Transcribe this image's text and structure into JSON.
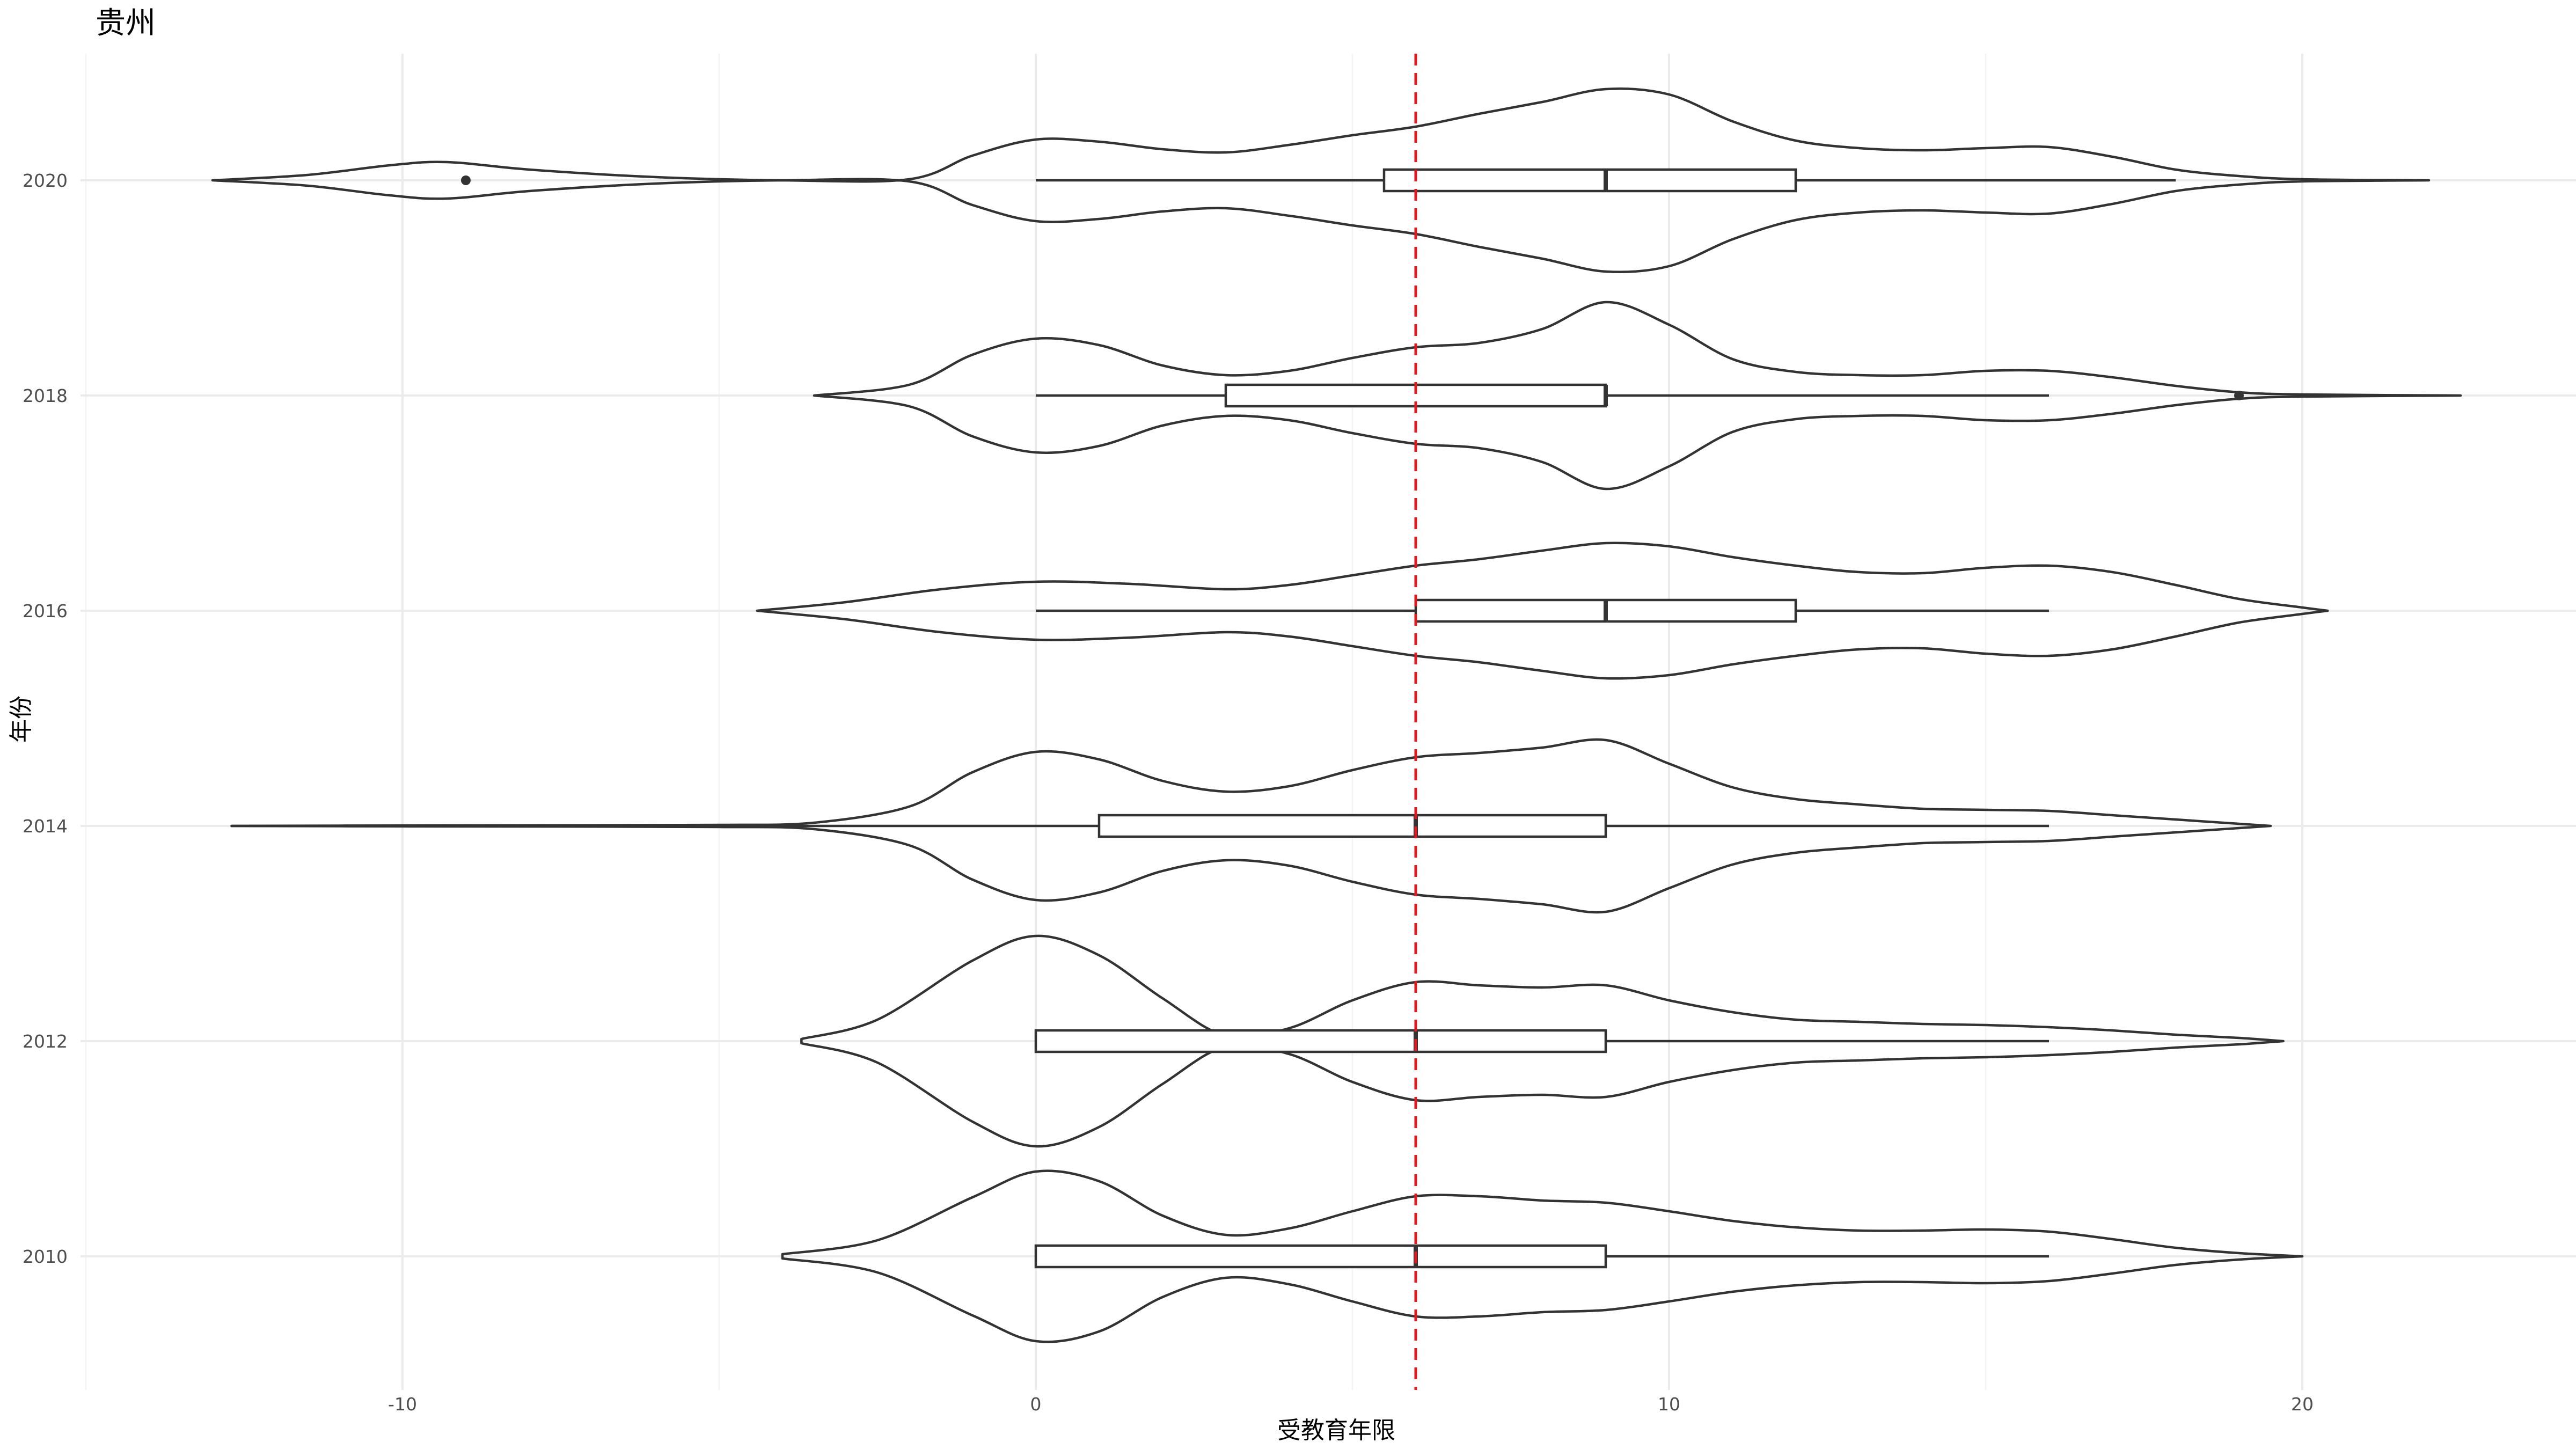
{
  "chart_data": {
    "type": "violin",
    "title": "贵州",
    "xlabel": "受教育年限",
    "ylabel": "年份",
    "xlim": [
      -15,
      24
    ],
    "x_ticks": [
      -10,
      0,
      10,
      20
    ],
    "x_tick_labels": [
      "-10",
      "0",
      "10",
      "20"
    ],
    "categories": [
      "2010",
      "2012",
      "2014",
      "2016",
      "2018",
      "2020"
    ],
    "reference_line": {
      "x": 6,
      "color": "#e31a1c",
      "style": "dashed"
    },
    "grid": true,
    "violins": [
      {
        "year": "2010",
        "min": -4,
        "max": 20,
        "density": [
          [
            -4,
            0.02
          ],
          [
            -2.5,
            0.15
          ],
          [
            -1,
            0.55
          ],
          [
            0,
            0.79
          ],
          [
            1,
            0.7
          ],
          [
            2,
            0.38
          ],
          [
            3,
            0.2
          ],
          [
            4,
            0.26
          ],
          [
            5,
            0.42
          ],
          [
            6,
            0.56
          ],
          [
            7,
            0.56
          ],
          [
            8,
            0.52
          ],
          [
            9,
            0.5
          ],
          [
            10,
            0.42
          ],
          [
            11,
            0.33
          ],
          [
            12,
            0.27
          ],
          [
            13,
            0.24
          ],
          [
            14,
            0.24
          ],
          [
            15,
            0.25
          ],
          [
            16,
            0.23
          ],
          [
            17,
            0.16
          ],
          [
            18,
            0.08
          ],
          [
            19,
            0.03
          ],
          [
            20,
            0.0
          ]
        ],
        "box": {
          "q1": 0,
          "median": 6,
          "q3": 9,
          "whisker_low": 0,
          "whisker_high": 16
        },
        "outliers": []
      },
      {
        "year": "2012",
        "min": -3.7,
        "max": 19.7,
        "density": [
          [
            -3.7,
            0.02
          ],
          [
            -2.5,
            0.2
          ],
          [
            -1,
            0.75
          ],
          [
            0,
            0.98
          ],
          [
            1,
            0.8
          ],
          [
            2,
            0.4
          ],
          [
            3,
            0.05
          ],
          [
            4,
            0.12
          ],
          [
            5,
            0.38
          ],
          [
            6,
            0.55
          ],
          [
            7,
            0.52
          ],
          [
            8,
            0.5
          ],
          [
            9,
            0.52
          ],
          [
            10,
            0.38
          ],
          [
            11,
            0.27
          ],
          [
            12,
            0.2
          ],
          [
            13,
            0.18
          ],
          [
            14,
            0.16
          ],
          [
            15,
            0.15
          ],
          [
            16,
            0.13
          ],
          [
            17,
            0.1
          ],
          [
            18,
            0.06
          ],
          [
            19,
            0.03
          ],
          [
            19.7,
            0.0
          ]
        ],
        "box": {
          "q1": 0,
          "median": 6,
          "q3": 9,
          "whisker_low": 0,
          "whisker_high": 16
        },
        "outliers": []
      },
      {
        "year": "2014",
        "min": -12.7,
        "max": 19.5,
        "density": [
          [
            -12.7,
            0.0
          ],
          [
            -10,
            0.004
          ],
          [
            -7,
            0.006
          ],
          [
            -5,
            0.01
          ],
          [
            -3.5,
            0.03
          ],
          [
            -2,
            0.18
          ],
          [
            -1,
            0.5
          ],
          [
            0,
            0.69
          ],
          [
            1,
            0.62
          ],
          [
            2,
            0.42
          ],
          [
            3,
            0.32
          ],
          [
            4,
            0.37
          ],
          [
            5,
            0.52
          ],
          [
            6,
            0.64
          ],
          [
            7,
            0.68
          ],
          [
            8,
            0.73
          ],
          [
            9,
            0.8
          ],
          [
            10,
            0.58
          ],
          [
            11,
            0.36
          ],
          [
            12,
            0.25
          ],
          [
            13,
            0.2
          ],
          [
            14,
            0.16
          ],
          [
            15,
            0.15
          ],
          [
            16,
            0.14
          ],
          [
            17,
            0.1
          ],
          [
            18,
            0.06
          ],
          [
            19,
            0.02
          ],
          [
            19.5,
            0.0
          ]
        ],
        "box": {
          "q1": 1,
          "median": 6,
          "q3": 9,
          "whisker_low": -12.7,
          "whisker_high": 16
        },
        "outliers": []
      },
      {
        "year": "2016",
        "min": -4.4,
        "max": 20.4,
        "density": [
          [
            -4.4,
            0.0
          ],
          [
            -3,
            0.08
          ],
          [
            -1.5,
            0.2
          ],
          [
            0,
            0.27
          ],
          [
            1.5,
            0.25
          ],
          [
            3,
            0.2
          ],
          [
            4,
            0.24
          ],
          [
            5,
            0.33
          ],
          [
            6,
            0.42
          ],
          [
            7,
            0.48
          ],
          [
            8,
            0.56
          ],
          [
            9,
            0.63
          ],
          [
            10,
            0.6
          ],
          [
            11,
            0.5
          ],
          [
            12,
            0.42
          ],
          [
            13,
            0.36
          ],
          [
            14,
            0.35
          ],
          [
            15,
            0.4
          ],
          [
            16,
            0.42
          ],
          [
            17,
            0.36
          ],
          [
            18,
            0.24
          ],
          [
            19,
            0.11
          ],
          [
            20,
            0.03
          ],
          [
            20.4,
            0.0
          ]
        ],
        "box": {
          "q1": 6,
          "median": 9,
          "q3": 12,
          "whisker_low": 0,
          "whisker_high": 16
        },
        "outliers": []
      },
      {
        "year": "2018",
        "min": -3.5,
        "max": 22.5,
        "density": [
          [
            -3.5,
            0.0
          ],
          [
            -2,
            0.1
          ],
          [
            -1,
            0.38
          ],
          [
            0,
            0.53
          ],
          [
            1,
            0.47
          ],
          [
            2,
            0.28
          ],
          [
            3,
            0.19
          ],
          [
            4,
            0.23
          ],
          [
            5,
            0.35
          ],
          [
            6,
            0.45
          ],
          [
            7,
            0.49
          ],
          [
            8,
            0.62
          ],
          [
            9,
            0.87
          ],
          [
            10,
            0.66
          ],
          [
            11,
            0.34
          ],
          [
            12,
            0.22
          ],
          [
            13,
            0.19
          ],
          [
            14,
            0.19
          ],
          [
            15,
            0.23
          ],
          [
            16,
            0.23
          ],
          [
            17,
            0.17
          ],
          [
            18,
            0.09
          ],
          [
            19,
            0.03
          ],
          [
            20,
            0.01
          ],
          [
            22.5,
            0.0
          ]
        ],
        "box": {
          "q1": 3,
          "median": 9,
          "q3": 9,
          "whisker_low": 0,
          "whisker_high": 16
        },
        "outliers": [
          19
        ]
      },
      {
        "year": "2020",
        "min": -13,
        "max": 22,
        "density": [
          [
            -13,
            0.0
          ],
          [
            -11.5,
            0.05
          ],
          [
            -10.2,
            0.14
          ],
          [
            -9.3,
            0.17
          ],
          [
            -8,
            0.1
          ],
          [
            -6,
            0.03
          ],
          [
            -4,
            0.0
          ],
          [
            -2,
            0.01
          ],
          [
            -1,
            0.23
          ],
          [
            0,
            0.38
          ],
          [
            1,
            0.36
          ],
          [
            2,
            0.29
          ],
          [
            3,
            0.26
          ],
          [
            4,
            0.33
          ],
          [
            5,
            0.42
          ],
          [
            6,
            0.5
          ],
          [
            7,
            0.62
          ],
          [
            8,
            0.73
          ],
          [
            9,
            0.85
          ],
          [
            10,
            0.8
          ],
          [
            11,
            0.55
          ],
          [
            12,
            0.37
          ],
          [
            13,
            0.3
          ],
          [
            14,
            0.28
          ],
          [
            15,
            0.3
          ],
          [
            16,
            0.31
          ],
          [
            17,
            0.22
          ],
          [
            18,
            0.1
          ],
          [
            19,
            0.04
          ],
          [
            20,
            0.01
          ],
          [
            22,
            0.0
          ]
        ],
        "box": {
          "q1": 5.5,
          "median": 9,
          "q3": 12,
          "whisker_low": 0,
          "whisker_high": 18
        },
        "outliers": [
          -9
        ]
      }
    ]
  }
}
